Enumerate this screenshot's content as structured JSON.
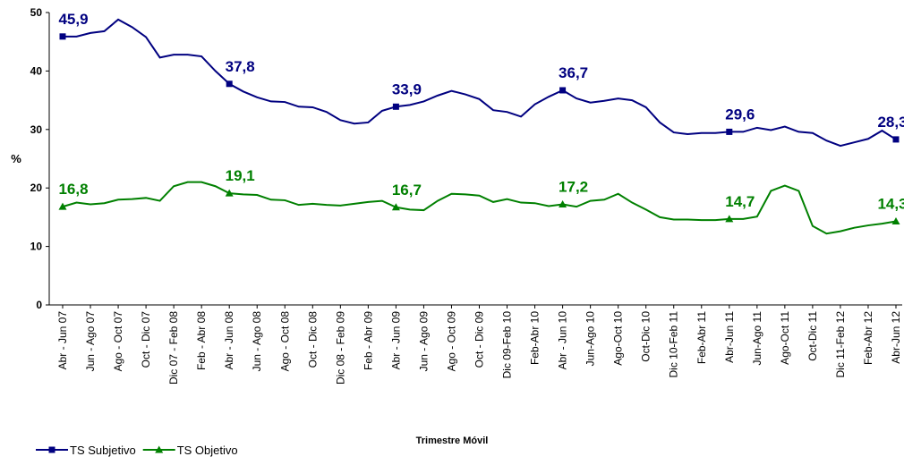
{
  "chart_data": {
    "type": "line",
    "y_label": "%",
    "x_label": "Trimestre Móvil",
    "categories": [
      "Abr - Jun 07",
      null,
      "Jun - Ago 07",
      null,
      "Ago - Oct 07",
      null,
      "Oct - Dic 07",
      null,
      "Dic 07 - Feb 08",
      null,
      "Feb - Abr 08",
      null,
      "Abr - Jun 08",
      null,
      "Jun - Ago 08",
      null,
      "Ago - Oct 08",
      null,
      "Oct - Dic 08",
      null,
      "Dic 08 - Feb 09",
      null,
      "Feb - Abr 09",
      null,
      "Abr - Jun 09",
      null,
      "Jun - Ago 09",
      null,
      "Ago - Oct 09",
      null,
      "Oct - Dic 09",
      null,
      "Dic 09-Feb 10",
      null,
      "Feb-Abr 10",
      null,
      "Abr - Jun 10",
      null,
      "Jun-Ago 10",
      null,
      "Ago-Oct 10",
      null,
      "Oct-Dic 10",
      null,
      "Dic 10-Feb 11",
      null,
      "Feb-Abr 11",
      null,
      "Abr-Jun 11",
      null,
      "Jun-Ago 11",
      null,
      "Ago-Oct 11",
      null,
      "Oct-Dic 11",
      null,
      "Dic 11-Feb 12",
      null,
      "Feb-Abr 12",
      null,
      "Abr-Jun 12"
    ],
    "series": [
      {
        "name": "TS Subjetivo",
        "color": "#000080",
        "marker": "square",
        "values": [
          45.9,
          45.9,
          46.5,
          46.8,
          48.8,
          47.5,
          45.8,
          42.3,
          42.8,
          42.8,
          42.5,
          40,
          37.8,
          36.5,
          35.5,
          34.8,
          34.7,
          33.9,
          33.8,
          33,
          31.6,
          31,
          31.2,
          33.2,
          33.9,
          34.2,
          34.8,
          35.8,
          36.6,
          36,
          35.2,
          33.3,
          33,
          32.2,
          34.3,
          35.6,
          36.7,
          35.3,
          34.6,
          34.9,
          35.3,
          35,
          33.8,
          31.2,
          29.5,
          29.2,
          29.4,
          29.4,
          29.6,
          29.6,
          30.3,
          29.9,
          30.5,
          29.6,
          29.4,
          28.1,
          27.2,
          27.8,
          28.4,
          29.8,
          28.3
        ],
        "value_labels": [
          "45,9",
          null,
          null,
          null,
          null,
          null,
          null,
          null,
          null,
          null,
          null,
          null,
          "37,8",
          null,
          null,
          null,
          null,
          null,
          null,
          null,
          null,
          null,
          null,
          null,
          "33,9",
          null,
          null,
          null,
          null,
          null,
          null,
          null,
          null,
          null,
          null,
          null,
          "36,7",
          null,
          null,
          null,
          null,
          null,
          null,
          null,
          null,
          null,
          null,
          null,
          "29,6",
          null,
          null,
          null,
          null,
          null,
          null,
          null,
          null,
          null,
          null,
          null,
          "28,3"
        ]
      },
      {
        "name": "TS Objetivo",
        "color": "#008000",
        "marker": "triangle",
        "values": [
          16.8,
          17.5,
          17.2,
          17.4,
          18,
          18.1,
          18.3,
          17.8,
          20.3,
          21,
          21,
          20.3,
          19.1,
          18.9,
          18.8,
          18,
          17.9,
          17.1,
          17.3,
          17.1,
          17,
          17.3,
          17.6,
          17.8,
          16.7,
          16.3,
          16.2,
          17.8,
          19,
          18.9,
          18.7,
          17.6,
          18.1,
          17.5,
          17.4,
          16.9,
          17.2,
          16.8,
          17.8,
          18,
          19,
          17.5,
          16.3,
          15,
          14.6,
          14.6,
          14.5,
          14.5,
          14.7,
          14.7,
          15.1,
          19.5,
          20.4,
          19.5,
          13.5,
          12.2,
          12.6,
          13.2,
          13.6,
          13.9,
          14.3
        ],
        "value_labels": [
          "16,8",
          null,
          null,
          null,
          null,
          null,
          null,
          null,
          null,
          null,
          null,
          null,
          "19,1",
          null,
          null,
          null,
          null,
          null,
          null,
          null,
          null,
          null,
          null,
          null,
          "16,7",
          null,
          null,
          null,
          null,
          null,
          null,
          null,
          null,
          null,
          null,
          null,
          "17,2",
          null,
          null,
          null,
          null,
          null,
          null,
          null,
          null,
          null,
          null,
          null,
          "14,7",
          null,
          null,
          null,
          null,
          null,
          null,
          null,
          null,
          null,
          null,
          null,
          "14,3"
        ]
      }
    ],
    "ylim": [
      0,
      50
    ],
    "yticks": [
      0,
      10,
      20,
      30,
      40,
      50
    ],
    "grid": false,
    "legend": "bottom-left"
  }
}
